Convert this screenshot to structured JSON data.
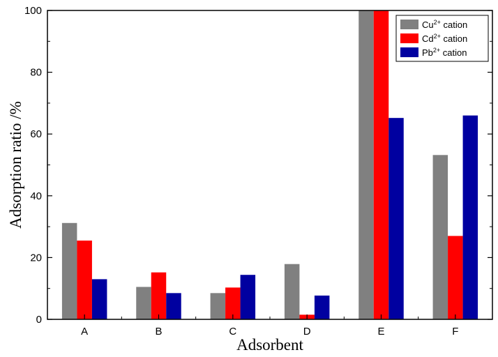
{
  "chart_data": {
    "type": "bar",
    "title": "",
    "xlabel": "Adsorbent",
    "ylabel": "Adsorption ratio /%",
    "categories": [
      "A",
      "B",
      "C",
      "D",
      "E",
      "F"
    ],
    "ylim": [
      0,
      100
    ],
    "yticks": [
      "0",
      "20",
      "40",
      "60",
      "80",
      "100"
    ],
    "legend_position": "top-right",
    "series": [
      {
        "name": "Cu2+ cation",
        "ion": "Cu",
        "charge": "2+",
        "suffix": " cation",
        "color": "#808080",
        "values": [
          31.2,
          10.5,
          8.5,
          17.9,
          100,
          53.2
        ]
      },
      {
        "name": "Cd2+ cation",
        "ion": "Cd",
        "charge": "2+",
        "suffix": " cation",
        "color": "#ff0000",
        "values": [
          25.5,
          15.2,
          10.3,
          1.5,
          100,
          27.0
        ]
      },
      {
        "name": "Pb2+ cation",
        "ion": "Pb",
        "charge": "2+",
        "suffix": " cation",
        "color": "#0000a0",
        "values": [
          13.0,
          8.5,
          14.4,
          7.7,
          65.2,
          66.0
        ]
      }
    ]
  }
}
